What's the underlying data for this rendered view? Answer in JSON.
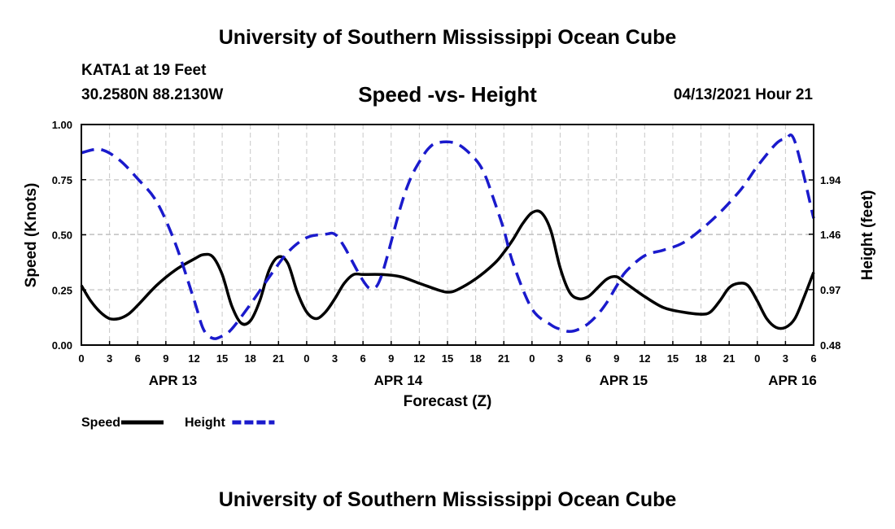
{
  "header": {
    "title": "University of Southern Mississippi Ocean Cube",
    "station": "KATA1 at 19 Feet",
    "coords": "30.2580N  88.2130W",
    "subtitle": "Speed -vs- Height",
    "datetime": "04/13/2021 Hour 21"
  },
  "footer": {
    "title": "University of Southern Mississippi Ocean Cube"
  },
  "chart_data": {
    "type": "line",
    "title": "Speed -vs- Height",
    "xlabel": "Forecast (Z)",
    "ylabel": "Speed (Knots)",
    "y2label": "Height (feet)",
    "x_hours_range": [
      0,
      78
    ],
    "ylim": [
      0,
      1.0
    ],
    "y2lim": [
      0.48,
      2.43
    ],
    "grid": true,
    "x_tick_labels": [
      "0",
      "3",
      "6",
      "9",
      "12",
      "15",
      "18",
      "21",
      "0",
      "3",
      "6",
      "9",
      "12",
      "15",
      "18",
      "21",
      "0",
      "3",
      "6",
      "9",
      "12",
      "15",
      "18",
      "21",
      "0",
      "3",
      "6"
    ],
    "y_tick_labels": [
      "0.00",
      "0.25",
      "0.50",
      "0.75",
      "1.00"
    ],
    "y_tick_values": [
      0,
      0.25,
      0.5,
      0.75,
      1.0
    ],
    "y2_tick_labels": [
      "0.48",
      "0.97",
      "1.46",
      "1.94"
    ],
    "y2_tick_values": [
      0.48,
      0.97,
      1.46,
      1.94
    ],
    "date_labels": [
      {
        "label": "APR 13",
        "hour": 9.75
      },
      {
        "label": "APR 14",
        "hour": 33.75
      },
      {
        "label": "APR 15",
        "hour": 57.75
      },
      {
        "label": "APR 16",
        "hour": 75.75
      }
    ],
    "legend": [
      {
        "name": "Speed",
        "color": "#000000",
        "dash": false
      },
      {
        "name": "Height",
        "color": "#1a1acc",
        "dash": true
      }
    ],
    "series": [
      {
        "name": "Speed",
        "axis": "left",
        "color": "#000000",
        "x": [
          0,
          1,
          2,
          3,
          4,
          5,
          6,
          8,
          10,
          12,
          13,
          14,
          15,
          16,
          17,
          18,
          19,
          20,
          21,
          22,
          23,
          24,
          25,
          26,
          27,
          28,
          29,
          30,
          32,
          34,
          36,
          38,
          39,
          40,
          42,
          44,
          45,
          46,
          47,
          48,
          49,
          50,
          51,
          52,
          53,
          54,
          55,
          56,
          57,
          58,
          60,
          62,
          64,
          66,
          67,
          68,
          69,
          70,
          71,
          72,
          73,
          74,
          75,
          76,
          77,
          78
        ],
        "values": [
          0.27,
          0.2,
          0.15,
          0.12,
          0.12,
          0.14,
          0.18,
          0.27,
          0.34,
          0.39,
          0.41,
          0.4,
          0.32,
          0.18,
          0.1,
          0.11,
          0.2,
          0.34,
          0.4,
          0.37,
          0.24,
          0.15,
          0.12,
          0.15,
          0.21,
          0.28,
          0.32,
          0.32,
          0.32,
          0.31,
          0.28,
          0.25,
          0.24,
          0.25,
          0.3,
          0.37,
          0.42,
          0.48,
          0.55,
          0.6,
          0.6,
          0.52,
          0.35,
          0.24,
          0.21,
          0.22,
          0.26,
          0.3,
          0.31,
          0.28,
          0.22,
          0.17,
          0.15,
          0.14,
          0.15,
          0.2,
          0.26,
          0.28,
          0.27,
          0.2,
          0.12,
          0.08,
          0.08,
          0.12,
          0.22,
          0.33
        ]
      },
      {
        "name": "Height",
        "axis": "right",
        "color": "#1a1acc",
        "x": [
          0,
          2,
          4,
          6,
          8,
          10,
          12,
          13,
          14,
          15,
          16,
          18,
          20,
          22,
          24,
          26,
          27,
          28,
          30,
          31,
          32,
          34,
          35,
          36,
          37,
          38,
          40,
          42,
          43,
          44,
          45,
          46,
          48,
          50,
          51,
          52,
          53,
          54,
          55,
          56,
          57,
          58,
          60,
          62,
          64,
          66,
          68,
          70,
          71,
          72,
          74,
          75,
          76,
          78
        ],
        "values": [
          2.18,
          2.21,
          2.12,
          1.95,
          1.75,
          1.38,
          0.88,
          0.62,
          0.54,
          0.56,
          0.62,
          0.84,
          1.08,
          1.3,
          1.43,
          1.46,
          1.46,
          1.35,
          1.05,
          0.98,
          1.1,
          1.7,
          1.94,
          2.1,
          2.22,
          2.27,
          2.26,
          2.12,
          1.98,
          1.75,
          1.5,
          1.2,
          0.8,
          0.66,
          0.62,
          0.6,
          0.62,
          0.67,
          0.75,
          0.86,
          1.0,
          1.13,
          1.27,
          1.32,
          1.38,
          1.5,
          1.65,
          1.83,
          1.94,
          2.06,
          2.26,
          2.3,
          2.28,
          1.6
        ]
      }
    ]
  }
}
